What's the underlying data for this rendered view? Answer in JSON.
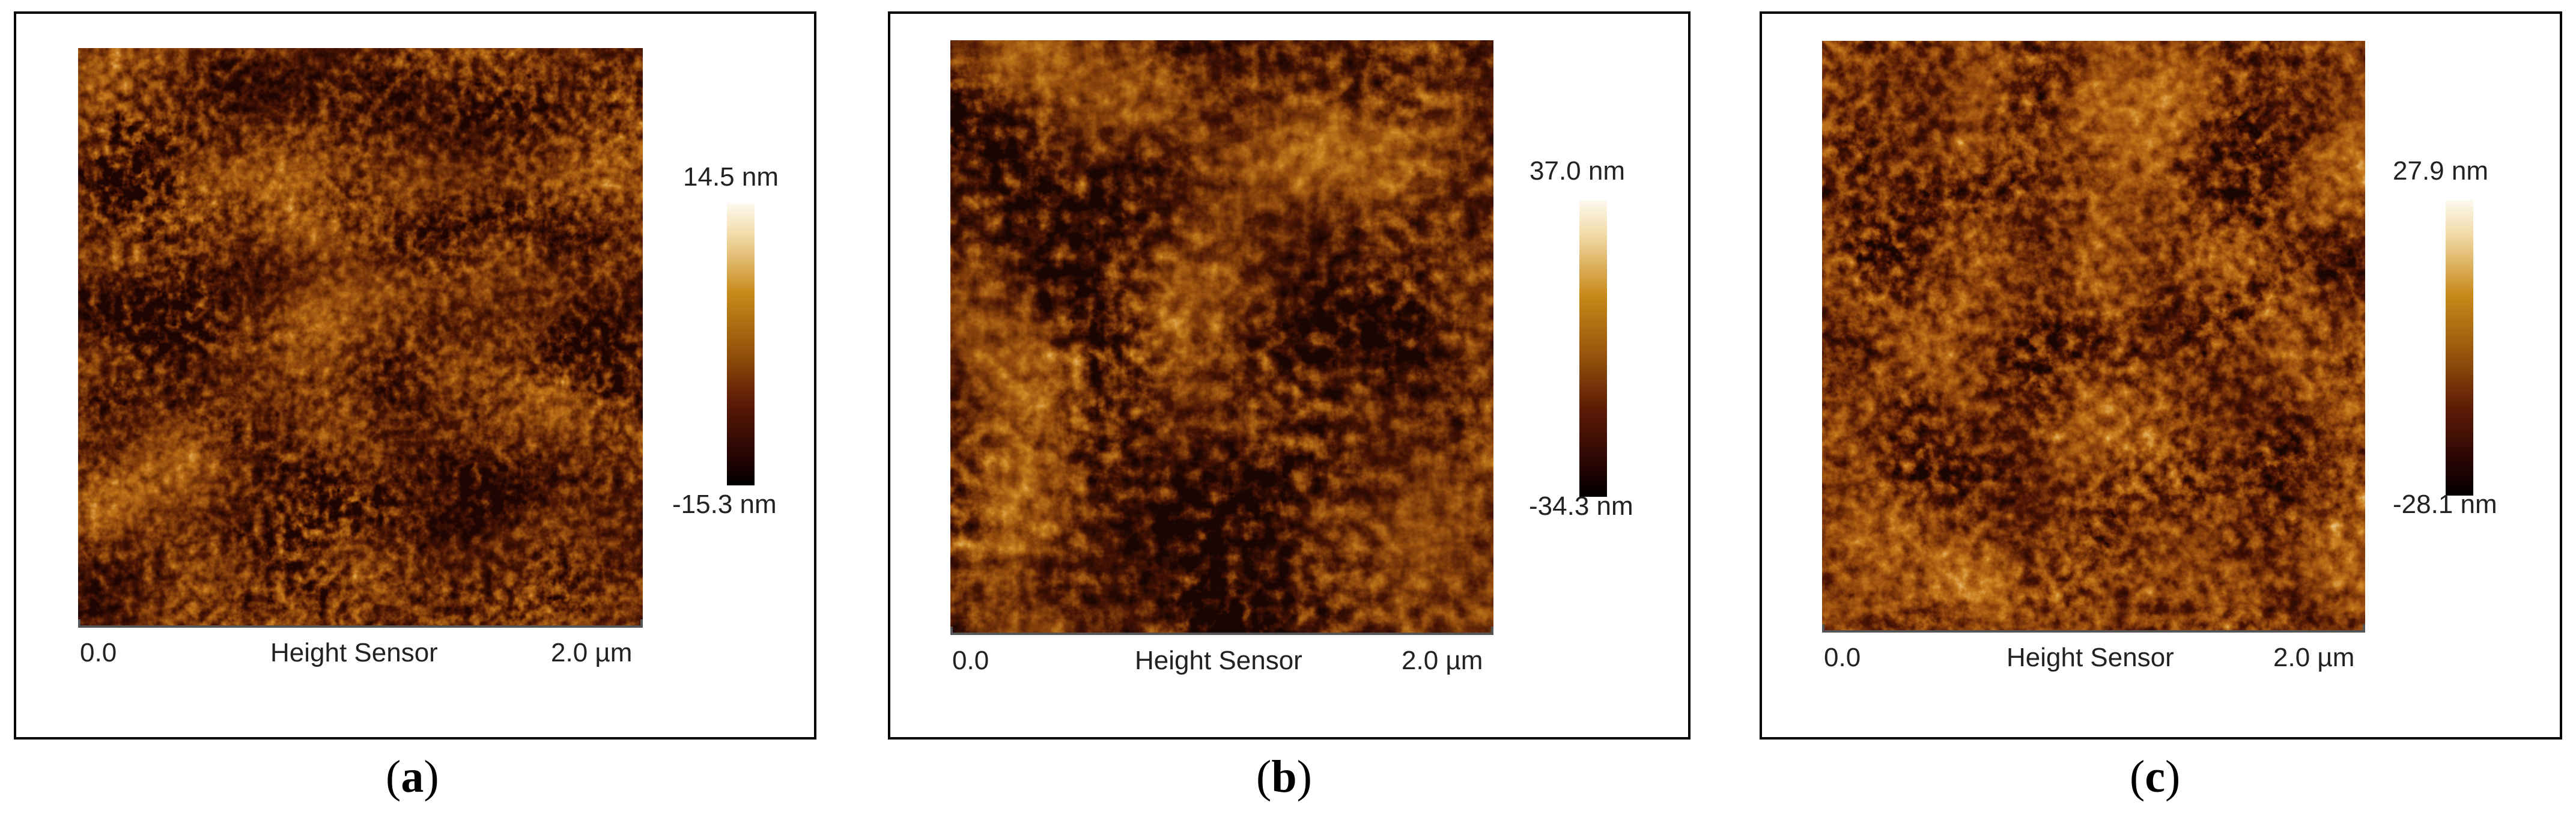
{
  "panels": [
    {
      "letter": "a",
      "colorbar_max": "14.5 nm",
      "colorbar_min": "-15.3 nm",
      "axis_min": "0.0",
      "axis_label": "Height Sensor",
      "axis_max": "2.0 µm",
      "caption_open": "(",
      "caption_close": ")"
    },
    {
      "letter": "b",
      "colorbar_max": "37.0 nm",
      "colorbar_min": "-34.3 nm",
      "axis_min": "0.0",
      "axis_label": "Height Sensor",
      "axis_max": "2.0 µm",
      "caption_open": "(",
      "caption_close": ")"
    },
    {
      "letter": "c",
      "colorbar_max": "27.9 nm",
      "colorbar_min": "-28.1 nm",
      "axis_min": "0.0",
      "axis_label": "Height Sensor",
      "axis_max": "2.0 µm",
      "caption_open": "(",
      "caption_close": ")"
    }
  ],
  "colors": {
    "scan_dark": "#3a0c03",
    "scan_mid": "#a8610f",
    "scan_light": "#f6e2b0",
    "frame": "#000000",
    "axis": "#555555"
  }
}
